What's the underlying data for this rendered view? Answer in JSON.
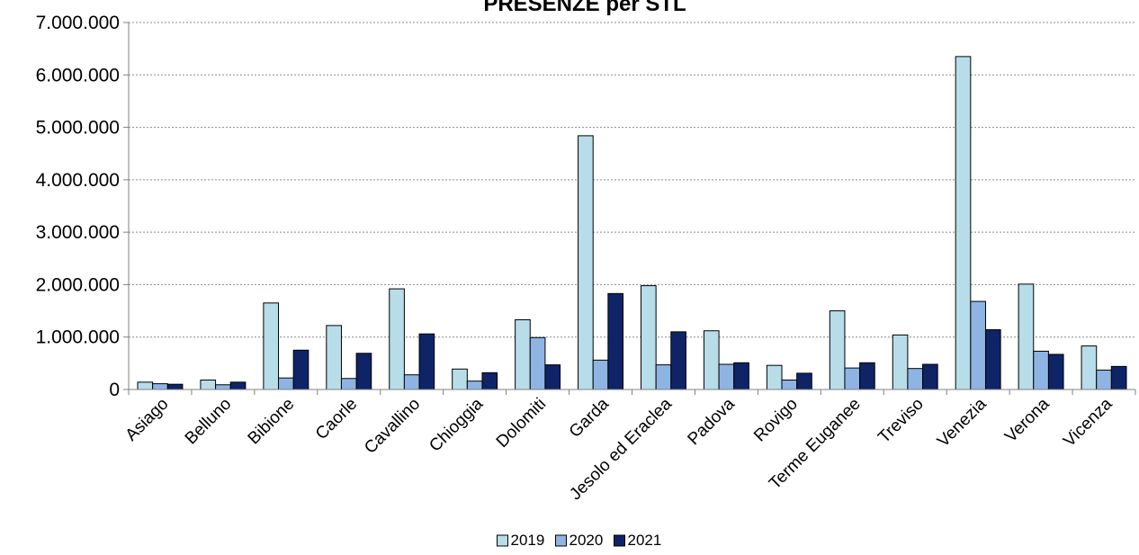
{
  "chart_data": {
    "type": "bar",
    "title": "PRESENZE per STL",
    "categories": [
      "Asiago",
      "Belluno",
      "Bibione",
      "Caorle",
      "Cavallino",
      "Chioggia",
      "Dolomiti",
      "Garda",
      "Jesolo ed Eraclea",
      "Padova",
      "Rovigo",
      "Terme Euganee",
      "Treviso",
      "Venezia",
      "Verona",
      "Vicenza"
    ],
    "series": [
      {
        "name": "2019",
        "color": "#b7dde8",
        "values": [
          140000,
          180000,
          1650000,
          1220000,
          1920000,
          390000,
          1330000,
          4840000,
          1980000,
          1120000,
          460000,
          1500000,
          1040000,
          6350000,
          2010000,
          830000
        ]
      },
      {
        "name": "2020",
        "color": "#8eb4e3",
        "values": [
          110000,
          90000,
          220000,
          210000,
          280000,
          160000,
          990000,
          560000,
          470000,
          480000,
          180000,
          410000,
          400000,
          1680000,
          730000,
          370000
        ]
      },
      {
        "name": "2021",
        "color": "#0f2467",
        "values": [
          100000,
          140000,
          750000,
          690000,
          1060000,
          320000,
          470000,
          1830000,
          1100000,
          510000,
          310000,
          510000,
          480000,
          1140000,
          670000,
          440000
        ]
      }
    ],
    "yticks": [
      "0",
      "1.000.000",
      "2.000.000",
      "3.000.000",
      "4.000.000",
      "5.000.000",
      "6.000.000",
      "7.000.000"
    ],
    "ylim": [
      0,
      7000000
    ],
    "grid": true,
    "legend_position": "bottom"
  }
}
